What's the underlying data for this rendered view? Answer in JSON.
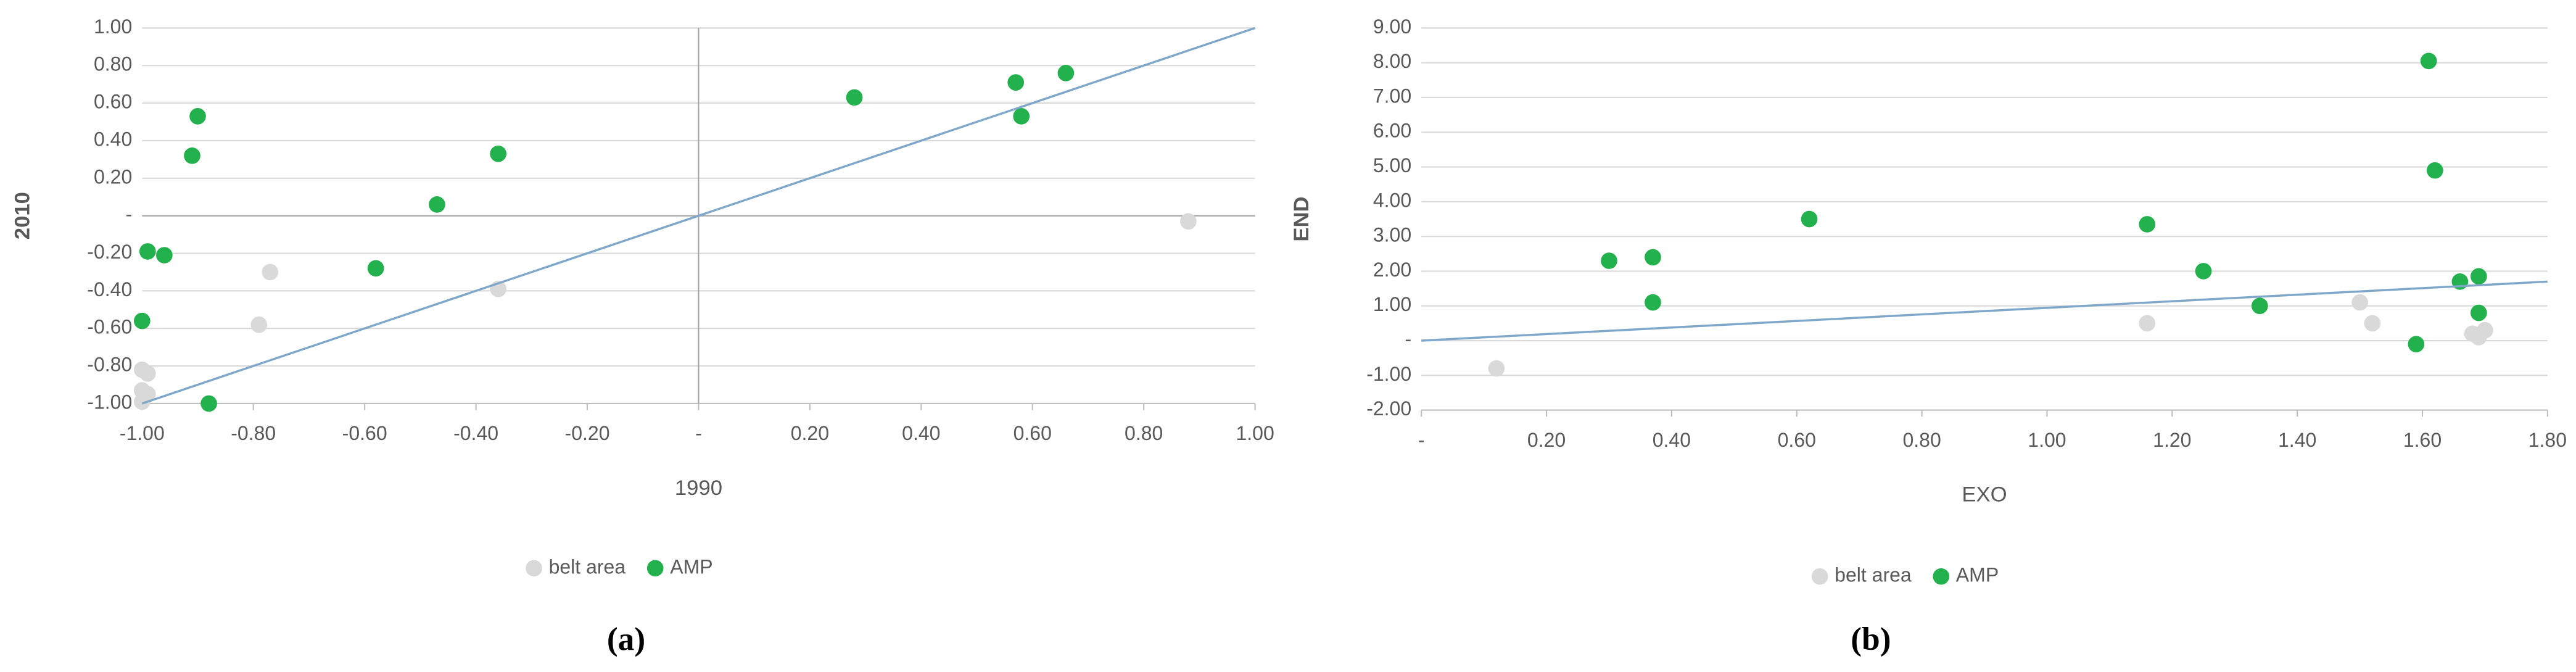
{
  "chart_data": [
    {
      "type": "scatter",
      "xlabel": "1990",
      "ylabel": "2010",
      "caption": "(a)",
      "xlim": [
        -1,
        1
      ],
      "ylim": [
        -1,
        1
      ],
      "xticks": [
        {
          "value": -1,
          "label": "-1.00"
        },
        {
          "value": -0.8,
          "label": "-0.80"
        },
        {
          "value": -0.6,
          "label": "-0.60"
        },
        {
          "value": -0.4,
          "label": "-0.40"
        },
        {
          "value": -0.2,
          "label": "-0.20"
        },
        {
          "value": 0,
          "label": "-"
        },
        {
          "value": 0.2,
          "label": "0.20"
        },
        {
          "value": 0.4,
          "label": "0.40"
        },
        {
          "value": 0.6,
          "label": "0.60"
        },
        {
          "value": 0.8,
          "label": "0.80"
        },
        {
          "value": 1,
          "label": "1.00"
        }
      ],
      "yticks": [
        {
          "value": -1,
          "label": "-1.00"
        },
        {
          "value": -0.8,
          "label": "-0.80"
        },
        {
          "value": -0.6,
          "label": "-0.60"
        },
        {
          "value": -0.4,
          "label": "-0.40"
        },
        {
          "value": -0.2,
          "label": "-0.20"
        },
        {
          "value": 0,
          "label": "-"
        },
        {
          "value": 0.2,
          "label": "0.20"
        },
        {
          "value": 0.4,
          "label": "0.40"
        },
        {
          "value": 0.6,
          "label": "0.60"
        },
        {
          "value": 0.8,
          "label": "0.80"
        },
        {
          "value": 1,
          "label": "1.00"
        }
      ],
      "grid": true,
      "zero_axes": true,
      "series": [
        {
          "name": "belt area",
          "color": "#d9d9d9",
          "x": [
            -1.0,
            -0.99,
            -1.0,
            -0.99,
            -1.0,
            -0.77,
            -0.79,
            -0.36,
            0.88
          ],
          "values": [
            -0.82,
            -0.84,
            -0.93,
            -0.95,
            -0.99,
            -0.3,
            -0.58,
            -0.39,
            -0.03
          ]
        },
        {
          "name": "AMP",
          "color": "#22b14c",
          "x": [
            -0.99,
            -1.0,
            -0.96,
            -0.91,
            -0.9,
            -0.88,
            -0.58,
            -0.47,
            -0.36,
            0.28,
            0.57,
            0.58,
            0.66
          ],
          "values": [
            -0.19,
            -0.56,
            -0.21,
            0.32,
            0.53,
            -1.0,
            -0.28,
            0.06,
            0.33,
            0.63,
            0.71,
            0.53,
            0.76
          ]
        }
      ],
      "reference_line": {
        "color": "#7fa7c9",
        "x": [
          -1,
          1
        ],
        "y": [
          -1,
          1
        ]
      }
    },
    {
      "type": "scatter",
      "xlabel": "EXO",
      "ylabel": "END",
      "caption": "(b)",
      "xlim": [
        0,
        1.8
      ],
      "ylim": [
        -2,
        9
      ],
      "xticks": [
        {
          "value": 0,
          "label": "-"
        },
        {
          "value": 0.2,
          "label": "0.20"
        },
        {
          "value": 0.4,
          "label": "0.40"
        },
        {
          "value": 0.6,
          "label": "0.60"
        },
        {
          "value": 0.8,
          "label": "0.80"
        },
        {
          "value": 1,
          "label": "1.00"
        },
        {
          "value": 1.2,
          "label": "1.20"
        },
        {
          "value": 1.4,
          "label": "1.40"
        },
        {
          "value": 1.6,
          "label": "1.60"
        },
        {
          "value": 1.8,
          "label": "1.80"
        }
      ],
      "yticks": [
        {
          "value": -2,
          "label": "-2.00"
        },
        {
          "value": -1,
          "label": "-1.00"
        },
        {
          "value": 0,
          "label": "-"
        },
        {
          "value": 1,
          "label": "1.00"
        },
        {
          "value": 2,
          "label": "2.00"
        },
        {
          "value": 3,
          "label": "3.00"
        },
        {
          "value": 4,
          "label": "4.00"
        },
        {
          "value": 5,
          "label": "5.00"
        },
        {
          "value": 6,
          "label": "6.00"
        },
        {
          "value": 7,
          "label": "7.00"
        },
        {
          "value": 8,
          "label": "8.00"
        },
        {
          "value": 9,
          "label": "9.00"
        }
      ],
      "grid": true,
      "zero_axes": false,
      "series": [
        {
          "name": "belt area",
          "color": "#d9d9d9",
          "x": [
            0.12,
            1.16,
            1.5,
            1.52,
            1.68,
            1.69,
            1.7
          ],
          "values": [
            -0.8,
            0.5,
            1.1,
            0.5,
            0.2,
            0.1,
            0.3
          ]
        },
        {
          "name": "AMP",
          "color": "#22b14c",
          "x": [
            0.3,
            0.37,
            0.37,
            0.62,
            1.16,
            1.25,
            1.34,
            1.59,
            1.61,
            1.62,
            1.66,
            1.69,
            1.69
          ],
          "values": [
            2.3,
            2.4,
            1.1,
            3.5,
            3.35,
            2.0,
            1.0,
            -0.1,
            8.05,
            4.9,
            1.7,
            1.85,
            0.8
          ]
        }
      ],
      "reference_line": {
        "color": "#7fa7c9",
        "x": [
          0,
          1.8
        ],
        "y": [
          0,
          1.7
        ]
      }
    }
  ]
}
